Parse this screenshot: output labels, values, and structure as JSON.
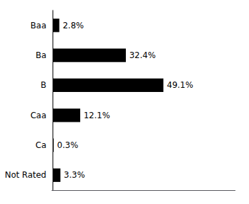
{
  "chart_data": {
    "type": "bar",
    "orientation": "horizontal",
    "categories": [
      "Baa",
      "Ba",
      "B",
      "Caa",
      "Ca",
      "Not Rated"
    ],
    "values": [
      2.8,
      32.4,
      49.1,
      12.1,
      0.3,
      3.3
    ],
    "value_labels": [
      "2.8%",
      "32.4%",
      "49.1%",
      "12.1%",
      "0.3%",
      "3.3%"
    ],
    "color": "#000000",
    "xlim": [
      -0.5,
      81.015
    ],
    "grid": false,
    "data_labels": true,
    "tick_labels": "y"
  }
}
